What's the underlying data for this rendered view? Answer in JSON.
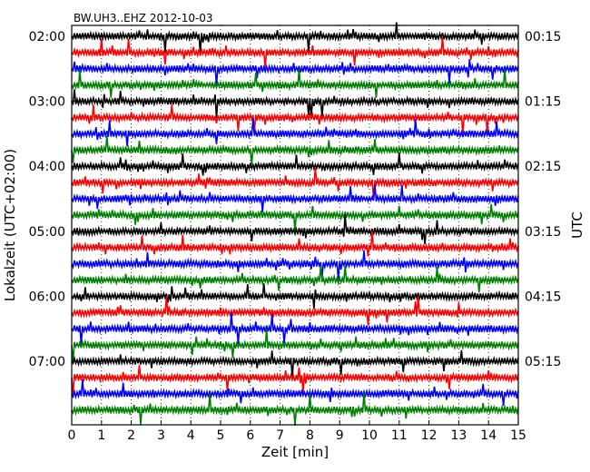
{
  "chart_data": {
    "type": "line",
    "title": "BW.UH3..EHZ 2012-10-03",
    "xlabel": "Zeit  [min]",
    "ylabel_left": "Lokalzeit (UTC+02:00)",
    "ylabel_right": "UTC",
    "xlim": [
      0,
      15
    ],
    "x_ticks": [
      "0",
      "1",
      "2",
      "3",
      "4",
      "5",
      "6",
      "7",
      "8",
      "9",
      "10",
      "11",
      "12",
      "13",
      "14",
      "15"
    ],
    "left_tick_labels": [
      "02:00",
      "03:00",
      "04:00",
      "05:00",
      "06:00",
      "07:00"
    ],
    "right_tick_labels": [
      "00:15",
      "01:15",
      "02:15",
      "03:15",
      "04:15",
      "05:15"
    ],
    "grid": "dotted vertical at each minute",
    "trace_interval_minutes": 15,
    "series_colors": [
      "#000000",
      "#ff0000",
      "#0000ff",
      "#008000"
    ],
    "traces": [
      {
        "start_utc": "00:15",
        "color": "#000000"
      },
      {
        "start_utc": "00:30",
        "color": "#ff0000"
      },
      {
        "start_utc": "00:45",
        "color": "#0000ff"
      },
      {
        "start_utc": "01:00",
        "color": "#008000"
      },
      {
        "start_utc": "01:15",
        "color": "#000000"
      },
      {
        "start_utc": "01:30",
        "color": "#ff0000"
      },
      {
        "start_utc": "01:45",
        "color": "#0000ff"
      },
      {
        "start_utc": "02:00",
        "color": "#008000"
      },
      {
        "start_utc": "02:15",
        "color": "#000000"
      },
      {
        "start_utc": "02:30",
        "color": "#ff0000"
      },
      {
        "start_utc": "02:45",
        "color": "#0000ff"
      },
      {
        "start_utc": "03:00",
        "color": "#008000"
      },
      {
        "start_utc": "03:15",
        "color": "#000000"
      },
      {
        "start_utc": "03:30",
        "color": "#ff0000"
      },
      {
        "start_utc": "03:45",
        "color": "#0000ff"
      },
      {
        "start_utc": "04:00",
        "color": "#008000"
      },
      {
        "start_utc": "04:15",
        "color": "#000000"
      },
      {
        "start_utc": "04:30",
        "color": "#ff0000"
      },
      {
        "start_utc": "04:45",
        "color": "#0000ff"
      },
      {
        "start_utc": "05:00",
        "color": "#008000"
      },
      {
        "start_utc": "05:15",
        "color": "#000000"
      },
      {
        "start_utc": "05:30",
        "color": "#ff0000"
      },
      {
        "start_utc": "05:45",
        "color": "#0000ff"
      },
      {
        "start_utc": "06:00",
        "color": "#008000"
      }
    ]
  }
}
